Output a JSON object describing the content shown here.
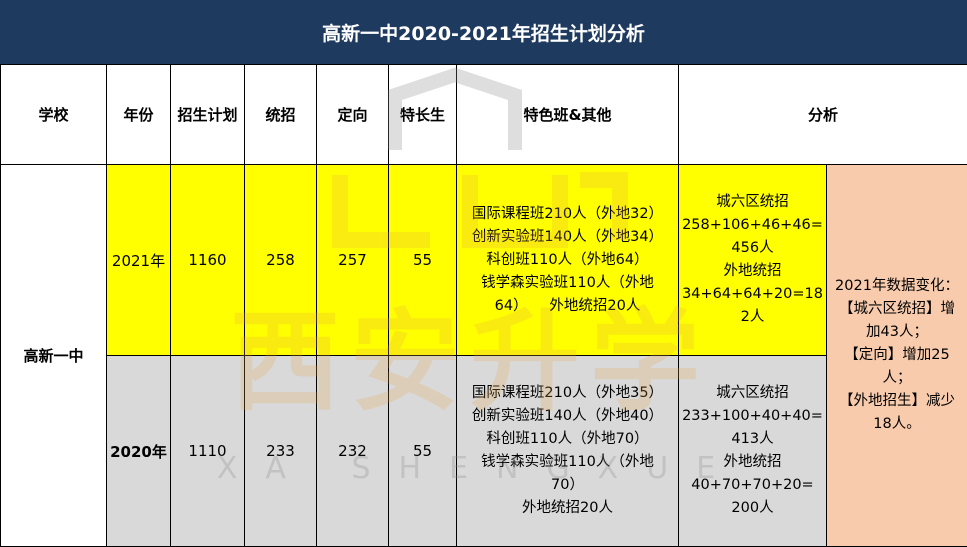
{
  "title": "高新一中2020-2021年招生计划分析",
  "headers": [
    "学校",
    "年份",
    "招生计划",
    "统招",
    "定向",
    "特长生",
    "特色班&其他",
    "分析"
  ],
  "school": "高新一中",
  "rows": [
    {
      "year": "2021年",
      "plan": "1160",
      "unified": "258",
      "directed": "257",
      "specialty": "55",
      "special_classes": "国际课程班210人（外地32）\n创新实验班140人（外地34）\n科创班110人（外地64）\n钱学森实验班110人（外地\n64）　　外地统招20人",
      "analysis": "城六区统招\n258+106+46+46=\n456人\n外地统招\n34+64+64+20=18\n2人"
    },
    {
      "year": "2020年",
      "plan": "1110",
      "unified": "233",
      "directed": "232",
      "specialty": "55",
      "special_classes": "国际课程班210人（外地35）\n创新实验班140人（外地40）\n科创班110人（外地70）\n钱学森实验班110人（外地\n70）\n外地统招20人",
      "analysis": "城六区统招\n233+100+40+40=\n413人\n外地统招\n40+70+70+20=\n200人"
    }
  ],
  "change_summary": "2021年数据变化：\n【城六区统招】增\n加43人；\n【定向】增加25\n人；\n【外地招生】减少\n18人。",
  "watermark": {
    "cn": "西安升学",
    "en": "XA SHENGXUE"
  },
  "colors": {
    "title_bg": "#1f3a5f",
    "row_2021": "#ffff00",
    "row_2020": "#d9d9d9",
    "summary": "#f8cbad"
  }
}
